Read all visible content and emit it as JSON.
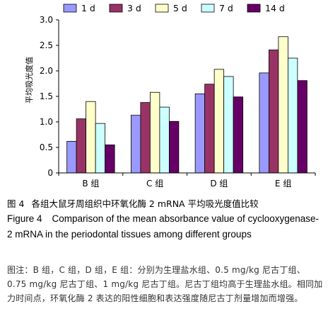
{
  "chart_data": {
    "type": "bar",
    "categories": [
      "B 组",
      "C 组",
      "D 组",
      "E 组"
    ],
    "series": [
      {
        "name": "1 d",
        "color": "#9999ff",
        "values": [
          0.62,
          1.13,
          1.55,
          1.96
        ]
      },
      {
        "name": "3 d",
        "color": "#993366",
        "values": [
          1.06,
          1.38,
          1.74,
          2.41
        ]
      },
      {
        "name": "5 d",
        "color": "#ffffcc",
        "values": [
          1.4,
          1.58,
          2.03,
          2.67
        ]
      },
      {
        "name": "7 d",
        "color": "#ccffff",
        "values": [
          0.97,
          1.29,
          1.89,
          2.25
        ]
      },
      {
        "name": "14 d",
        "color": "#660066",
        "values": [
          0.55,
          1.01,
          1.49,
          1.81
        ]
      }
    ],
    "ylabel": "平均吸光度值",
    "ylim": [
      0,
      3.0
    ],
    "yticks": [
      "0",
      "0.5",
      "1.0",
      "1.5",
      "2.0",
      "2.5",
      "3.0"
    ],
    "grid": false,
    "legend": "top"
  },
  "caption": {
    "cn_label": "图 4",
    "cn_text": "各组大鼠牙周组织中环氧化酶 2 mRNA 平均吸光度值比较",
    "en_label": "Figure 4",
    "en_text": "Comparison of the mean absorbance value of cyclooxygenase-2 mRNA in the periodontal tissues among different groups",
    "note": "图注：B 组，C 组，D 组，E 组：分别为生理盐水组、0.5 mg/kg 尼古丁组、0.75 mg/kg 尼古丁组、1 mg/kg 尼古丁组。尼古丁组均高于生理盐水组。相同加力时间点，环氧化酶 2 表达的阳性细胞和表达强度随尼古丁剂量增加而增强。"
  }
}
